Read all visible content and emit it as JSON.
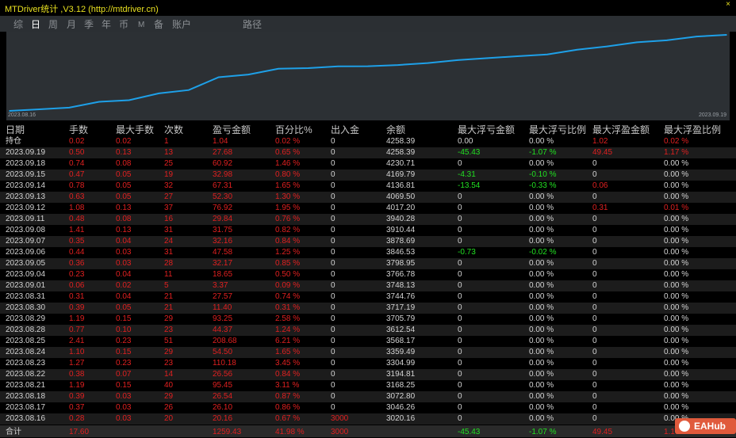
{
  "window": {
    "title": "MTDriver统计 ,V3.12 (http://mtdriver.cn)",
    "close_glyph": "×"
  },
  "tabs": [
    "综",
    "日",
    "周",
    "月",
    "季",
    "年",
    "币",
    "M",
    "备",
    "账户",
    "路径"
  ],
  "active_tab": "日",
  "chart": {
    "start_label": "2023.08.16",
    "end_label": "2023.09.19",
    "line_color": "#1ea0e8",
    "background_color": "#2c3034"
  },
  "chart_data": {
    "type": "line",
    "x": [
      "2023.08.16",
      "2023.08.17",
      "2023.08.18",
      "2023.08.21",
      "2023.08.22",
      "2023.08.23",
      "2023.08.24",
      "2023.08.25",
      "2023.08.28",
      "2023.08.29",
      "2023.08.30",
      "2023.08.31",
      "2023.09.01",
      "2023.09.04",
      "2023.09.05",
      "2023.09.06",
      "2023.09.07",
      "2023.09.08",
      "2023.09.11",
      "2023.09.12",
      "2023.09.13",
      "2023.09.14",
      "2023.09.15",
      "2023.09.18",
      "2023.09.19"
    ],
    "series": [
      {
        "values": [
          3020.16,
          3046.26,
          3072.8,
          3168.25,
          3194.81,
          3304.99,
          3359.49,
          3568.17,
          3612.54,
          3705.79,
          3717.19,
          3744.76,
          3748.13,
          3766.78,
          3798.95,
          3846.53,
          3878.69,
          3910.44,
          3940.28,
          4017.2,
          4069.5,
          4136.81,
          4169.79,
          4230.71,
          4258.39
        ]
      }
    ],
    "xlabel": "",
    "ylabel": ""
  },
  "table": {
    "headers": [
      "日期",
      "手数",
      "最大手数",
      "次数",
      "盈亏金额",
      "百分比%",
      "出入金",
      "余额",
      "最大浮亏金额",
      "最大浮亏比例",
      "最大浮盈金额",
      "最大浮盈比例"
    ],
    "rows": [
      {
        "date": "持仓",
        "lots": "0.02",
        "max_lots": "0.02",
        "count": "1",
        "pnl": "1.04",
        "pct": "0.02 %",
        "io": "0",
        "balance": "4258.39",
        "max_float_loss": "0.00",
        "max_float_loss_pct": "0.00 %",
        "max_float_profit": "1.02",
        "max_float_profit_pct": "0.02 %"
      },
      {
        "date": "2023.09.19",
        "lots": "0.50",
        "max_lots": "0.13",
        "count": "13",
        "pnl": "27.68",
        "pct": "0.65 %",
        "io": "0",
        "balance": "4258.39",
        "max_float_loss": "-45.43",
        "max_float_loss_pct": "-1.07 %",
        "max_float_profit": "49.45",
        "max_float_profit_pct": "1.17 %"
      },
      {
        "date": "2023.09.18",
        "lots": "0.74",
        "max_lots": "0.08",
        "count": "25",
        "pnl": "60.92",
        "pct": "1.46 %",
        "io": "0",
        "balance": "4230.71",
        "max_float_loss": "0",
        "max_float_loss_pct": "0.00 %",
        "max_float_profit": "0",
        "max_float_profit_pct": "0.00 %"
      },
      {
        "date": "2023.09.15",
        "lots": "0.47",
        "max_lots": "0.05",
        "count": "19",
        "pnl": "32.98",
        "pct": "0.80 %",
        "io": "0",
        "balance": "4169.79",
        "max_float_loss": "-4.31",
        "max_float_loss_pct": "-0.10 %",
        "max_float_profit": "0",
        "max_float_profit_pct": "0.00 %"
      },
      {
        "date": "2023.09.14",
        "lots": "0.78",
        "max_lots": "0.05",
        "count": "32",
        "pnl": "67.31",
        "pct": "1.65 %",
        "io": "0",
        "balance": "4136.81",
        "max_float_loss": "-13.54",
        "max_float_loss_pct": "-0.33 %",
        "max_float_profit": "0.06",
        "max_float_profit_pct": "0.00 %"
      },
      {
        "date": "2023.09.13",
        "lots": "0.63",
        "max_lots": "0.05",
        "count": "27",
        "pnl": "52.30",
        "pct": "1.30 %",
        "io": "0",
        "balance": "4069.50",
        "max_float_loss": "0",
        "max_float_loss_pct": "0.00 %",
        "max_float_profit": "0",
        "max_float_profit_pct": "0.00 %"
      },
      {
        "date": "2023.09.12",
        "lots": "1.08",
        "max_lots": "0.13",
        "count": "37",
        "pnl": "76.92",
        "pct": "1.95 %",
        "io": "0",
        "balance": "4017.20",
        "max_float_loss": "0",
        "max_float_loss_pct": "0.00 %",
        "max_float_profit": "0.31",
        "max_float_profit_pct": "0.01 %"
      },
      {
        "date": "2023.09.11",
        "lots": "0.48",
        "max_lots": "0.08",
        "count": "16",
        "pnl": "29.84",
        "pct": "0.76 %",
        "io": "0",
        "balance": "3940.28",
        "max_float_loss": "0",
        "max_float_loss_pct": "0.00 %",
        "max_float_profit": "0",
        "max_float_profit_pct": "0.00 %"
      },
      {
        "date": "2023.09.08",
        "lots": "1.41",
        "max_lots": "0.13",
        "count": "31",
        "pnl": "31.75",
        "pct": "0.82 %",
        "io": "0",
        "balance": "3910.44",
        "max_float_loss": "0",
        "max_float_loss_pct": "0.00 %",
        "max_float_profit": "0",
        "max_float_profit_pct": "0.00 %"
      },
      {
        "date": "2023.09.07",
        "lots": "0.35",
        "max_lots": "0.04",
        "count": "24",
        "pnl": "32.16",
        "pct": "0.84 %",
        "io": "0",
        "balance": "3878.69",
        "max_float_loss": "0",
        "max_float_loss_pct": "0.00 %",
        "max_float_profit": "0",
        "max_float_profit_pct": "0.00 %"
      },
      {
        "date": "2023.09.06",
        "lots": "0.44",
        "max_lots": "0.03",
        "count": "31",
        "pnl": "47.58",
        "pct": "1.25 %",
        "io": "0",
        "balance": "3846.53",
        "max_float_loss": "-0.73",
        "max_float_loss_pct": "-0.02 %",
        "max_float_profit": "0",
        "max_float_profit_pct": "0.00 %"
      },
      {
        "date": "2023.09.05",
        "lots": "0.36",
        "max_lots": "0.03",
        "count": "28",
        "pnl": "32.17",
        "pct": "0.85 %",
        "io": "0",
        "balance": "3798.95",
        "max_float_loss": "0",
        "max_float_loss_pct": "0.00 %",
        "max_float_profit": "0",
        "max_float_profit_pct": "0.00 %"
      },
      {
        "date": "2023.09.04",
        "lots": "0.23",
        "max_lots": "0.04",
        "count": "11",
        "pnl": "18.65",
        "pct": "0.50 %",
        "io": "0",
        "balance": "3766.78",
        "max_float_loss": "0",
        "max_float_loss_pct": "0.00 %",
        "max_float_profit": "0",
        "max_float_profit_pct": "0.00 %"
      },
      {
        "date": "2023.09.01",
        "lots": "0.06",
        "max_lots": "0.02",
        "count": "5",
        "pnl": "3.37",
        "pct": "0.09 %",
        "io": "0",
        "balance": "3748.13",
        "max_float_loss": "0",
        "max_float_loss_pct": "0.00 %",
        "max_float_profit": "0",
        "max_float_profit_pct": "0.00 %"
      },
      {
        "date": "2023.08.31",
        "lots": "0.31",
        "max_lots": "0.04",
        "count": "21",
        "pnl": "27.57",
        "pct": "0.74 %",
        "io": "0",
        "balance": "3744.76",
        "max_float_loss": "0",
        "max_float_loss_pct": "0.00 %",
        "max_float_profit": "0",
        "max_float_profit_pct": "0.00 %"
      },
      {
        "date": "2023.08.30",
        "lots": "0.39",
        "max_lots": "0.05",
        "count": "21",
        "pnl": "11.40",
        "pct": "0.31 %",
        "io": "0",
        "balance": "3717.19",
        "max_float_loss": "0",
        "max_float_loss_pct": "0.00 %",
        "max_float_profit": "0",
        "max_float_profit_pct": "0.00 %"
      },
      {
        "date": "2023.08.29",
        "lots": "1.19",
        "max_lots": "0.15",
        "count": "29",
        "pnl": "93.25",
        "pct": "2.58 %",
        "io": "0",
        "balance": "3705.79",
        "max_float_loss": "0",
        "max_float_loss_pct": "0.00 %",
        "max_float_profit": "0",
        "max_float_profit_pct": "0.00 %"
      },
      {
        "date": "2023.08.28",
        "lots": "0.77",
        "max_lots": "0.10",
        "count": "23",
        "pnl": "44.37",
        "pct": "1.24 %",
        "io": "0",
        "balance": "3612.54",
        "max_float_loss": "0",
        "max_float_loss_pct": "0.00 %",
        "max_float_profit": "0",
        "max_float_profit_pct": "0.00 %"
      },
      {
        "date": "2023.08.25",
        "lots": "2.41",
        "max_lots": "0.23",
        "count": "51",
        "pnl": "208.68",
        "pct": "6.21 %",
        "io": "0",
        "balance": "3568.17",
        "max_float_loss": "0",
        "max_float_loss_pct": "0.00 %",
        "max_float_profit": "0",
        "max_float_profit_pct": "0.00 %"
      },
      {
        "date": "2023.08.24",
        "lots": "1.10",
        "max_lots": "0.15",
        "count": "29",
        "pnl": "54.50",
        "pct": "1.65 %",
        "io": "0",
        "balance": "3359.49",
        "max_float_loss": "0",
        "max_float_loss_pct": "0.00 %",
        "max_float_profit": "0",
        "max_float_profit_pct": "0.00 %"
      },
      {
        "date": "2023.08.23",
        "lots": "1.27",
        "max_lots": "0.23",
        "count": "23",
        "pnl": "110.18",
        "pct": "3.45 %",
        "io": "0",
        "balance": "3304.99",
        "max_float_loss": "0",
        "max_float_loss_pct": "0.00 %",
        "max_float_profit": "0",
        "max_float_profit_pct": "0.00 %"
      },
      {
        "date": "2023.08.22",
        "lots": "0.38",
        "max_lots": "0.07",
        "count": "14",
        "pnl": "26.56",
        "pct": "0.84 %",
        "io": "0",
        "balance": "3194.81",
        "max_float_loss": "0",
        "max_float_loss_pct": "0.00 %",
        "max_float_profit": "0",
        "max_float_profit_pct": "0.00 %"
      },
      {
        "date": "2023.08.21",
        "lots": "1.19",
        "max_lots": "0.15",
        "count": "40",
        "pnl": "95.45",
        "pct": "3.11 %",
        "io": "0",
        "balance": "3168.25",
        "max_float_loss": "0",
        "max_float_loss_pct": "0.00 %",
        "max_float_profit": "0",
        "max_float_profit_pct": "0.00 %"
      },
      {
        "date": "2023.08.18",
        "lots": "0.39",
        "max_lots": "0.03",
        "count": "29",
        "pnl": "26.54",
        "pct": "0.87 %",
        "io": "0",
        "balance": "3072.80",
        "max_float_loss": "0",
        "max_float_loss_pct": "0.00 %",
        "max_float_profit": "0",
        "max_float_profit_pct": "0.00 %"
      },
      {
        "date": "2023.08.17",
        "lots": "0.37",
        "max_lots": "0.03",
        "count": "26",
        "pnl": "26.10",
        "pct": "0.86 %",
        "io": "0",
        "balance": "3046.26",
        "max_float_loss": "0",
        "max_float_loss_pct": "0.00 %",
        "max_float_profit": "0",
        "max_float_profit_pct": "0.00 %"
      },
      {
        "date": "2023.08.16",
        "lots": "0.28",
        "max_lots": "0.03",
        "count": "20",
        "pnl": "20.16",
        "pct": "0.67 %",
        "io": "3000",
        "balance": "3020.16",
        "max_float_loss": "0",
        "max_float_loss_pct": "0.00 %",
        "max_float_profit": "0",
        "max_float_profit_pct": "0.00 %"
      }
    ],
    "total": {
      "label": "合计",
      "lots": "17.60",
      "pnl": "1259.43",
      "pct": "41.98 %",
      "io": "3000",
      "max_float_loss": "-45.43",
      "max_float_loss_pct": "-1.07 %",
      "max_float_profit": "49.45",
      "max_float_profit_pct": "1.17 %"
    }
  },
  "watermark": {
    "text": "EAHub"
  },
  "colors": {
    "profit": "#e02020",
    "neutral": "#d4d4d4",
    "loss": "#22e022",
    "title": "#e8e020"
  }
}
